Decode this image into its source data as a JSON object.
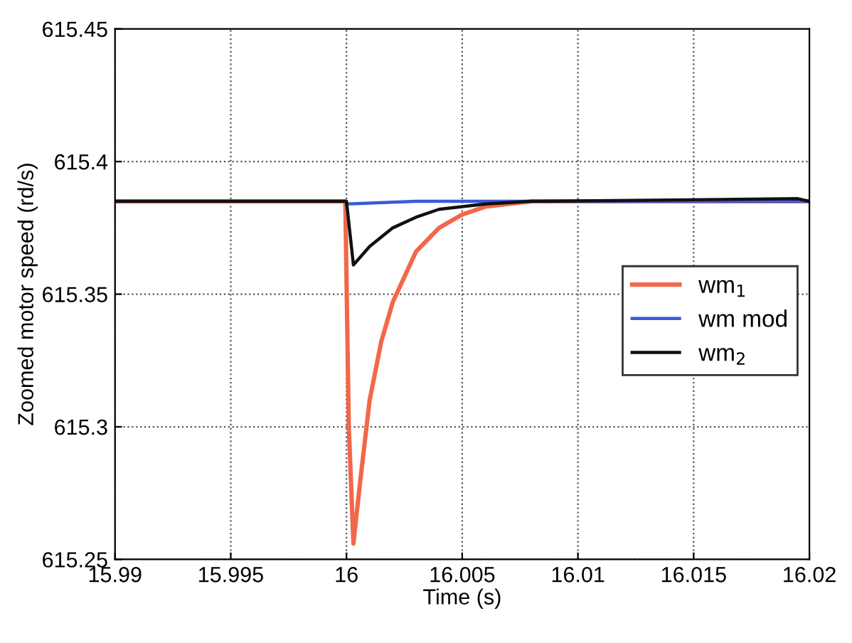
{
  "chart_data": {
    "type": "line",
    "xlabel": "Time (s)",
    "ylabel": "Zoomed motor speed (rd/s)",
    "xlim": [
      15.99,
      16.02
    ],
    "xticks": [
      15.99,
      15.995,
      16,
      16.005,
      16.01,
      16.015,
      16.02
    ],
    "ylim": [
      615.25,
      615.45
    ],
    "yticks": [
      615.25,
      615.3,
      615.35,
      615.4,
      615.45
    ],
    "grid": true,
    "legend": "right",
    "line_style": "solid",
    "series": [
      {
        "name": "wm$_{1}$",
        "color": "#f2674a",
        "x": [
          15.99,
          15.99995,
          16.0001,
          16.0003,
          16.0006,
          16.001,
          16.0015,
          16.002,
          16.003,
          16.004,
          16.005,
          16.006,
          16.008,
          16.02
        ],
        "values": [
          615.385,
          615.385,
          615.3,
          615.256,
          615.28,
          615.31,
          615.332,
          615.347,
          615.366,
          615.375,
          615.38,
          615.383,
          615.385,
          615.385
        ]
      },
      {
        "name": "wm mod",
        "color": "#3b5bd6",
        "x": [
          16.0,
          16.003,
          16.02
        ],
        "values": [
          615.384,
          615.385,
          615.385
        ]
      },
      {
        "name": "wm$_{2}$",
        "color": "#111111",
        "x": [
          15.99,
          16.0,
          16.0003,
          16.001,
          16.002,
          16.003,
          16.004,
          16.006,
          16.008,
          16.0195,
          16.02
        ],
        "values": [
          615.385,
          615.385,
          615.361,
          615.368,
          615.375,
          615.379,
          615.382,
          615.384,
          615.385,
          615.386,
          615.385
        ]
      }
    ]
  }
}
